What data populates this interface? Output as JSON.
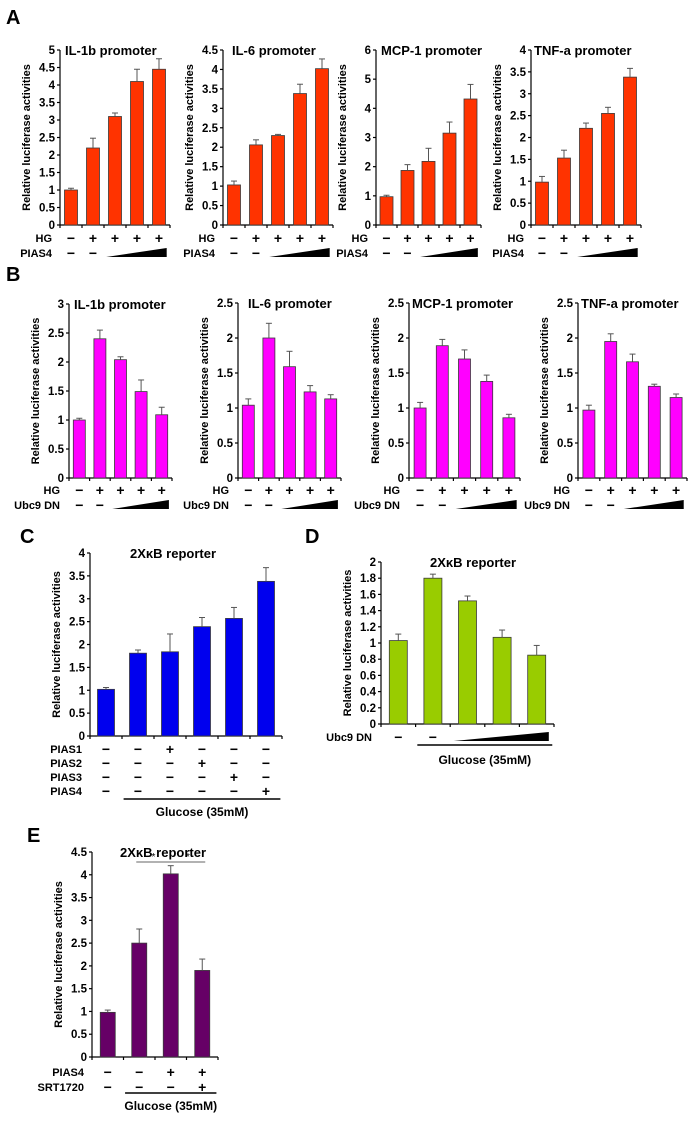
{
  "figure": {
    "colors": {
      "A": "#ff3300",
      "B": "#ff00ff",
      "C": "#0000ee",
      "D": "#99cc00",
      "E": "#660066"
    }
  },
  "chart_data": [
    {
      "panel": "A",
      "id": "A1",
      "type": "bar",
      "title": "IL-1b promoter",
      "ylabel": "Relative luciferase activities",
      "ylim": [
        0,
        5
      ],
      "yticks": [
        "0",
        "0.5",
        "1",
        "1.5",
        "2",
        "2.5",
        "3",
        "3.5",
        "4",
        "4.5",
        "5"
      ],
      "values": [
        1.0,
        2.2,
        3.1,
        4.1,
        4.45
      ],
      "errors": [
        0.05,
        0.28,
        0.1,
        0.35,
        0.3
      ],
      "conditions": [
        {
          "label": "HG",
          "marks": [
            "−",
            "+",
            "+",
            "+",
            "+"
          ]
        },
        {
          "label": "PIAS4",
          "marks": [
            "−",
            "−",
            "ramp",
            "ramp",
            "ramp"
          ]
        }
      ]
    },
    {
      "panel": "A",
      "id": "A2",
      "type": "bar",
      "title": "IL-6 promoter",
      "ylabel": "Relative luciferase activities",
      "ylim": [
        0,
        4.5
      ],
      "yticks": [
        "0",
        "0.5",
        "1",
        "1.5",
        "2",
        "2.5",
        "3",
        "3.5",
        "4",
        "4.5"
      ],
      "values": [
        1.03,
        2.06,
        2.3,
        3.38,
        4.02
      ],
      "errors": [
        0.1,
        0.13,
        0.03,
        0.24,
        0.25
      ],
      "conditions": [
        {
          "label": "HG",
          "marks": [
            "−",
            "+",
            "+",
            "+",
            "+"
          ]
        },
        {
          "label": "PIAS4",
          "marks": [
            "−",
            "−",
            "ramp",
            "ramp",
            "ramp"
          ]
        }
      ]
    },
    {
      "panel": "A",
      "id": "A3",
      "type": "bar",
      "title": "MCP-1 promoter",
      "ylabel": "Relative luciferase activities",
      "ylim": [
        0,
        6
      ],
      "yticks": [
        "0",
        "1",
        "2",
        "3",
        "4",
        "5",
        "6"
      ],
      "values": [
        0.97,
        1.87,
        2.18,
        3.15,
        4.32
      ],
      "errors": [
        0.05,
        0.2,
        0.45,
        0.38,
        0.5
      ],
      "conditions": [
        {
          "label": "HG",
          "marks": [
            "−",
            "+",
            "+",
            "+",
            "+"
          ]
        },
        {
          "label": "PIAS4",
          "marks": [
            "−",
            "−",
            "ramp",
            "ramp",
            "ramp"
          ]
        }
      ]
    },
    {
      "panel": "A",
      "id": "A4",
      "type": "bar",
      "title": "TNF-a promoter",
      "ylabel": "Relative luciferase activities",
      "ylim": [
        0,
        4
      ],
      "yticks": [
        "0",
        "0.5",
        "1",
        "1.5",
        "2",
        "2.5",
        "3",
        "3.5",
        "4"
      ],
      "values": [
        0.98,
        1.53,
        2.21,
        2.55,
        3.38
      ],
      "errors": [
        0.13,
        0.18,
        0.12,
        0.14,
        0.2
      ],
      "conditions": [
        {
          "label": "HG",
          "marks": [
            "−",
            "+",
            "+",
            "+",
            "+"
          ]
        },
        {
          "label": "PIAS4",
          "marks": [
            "−",
            "−",
            "ramp",
            "ramp",
            "ramp"
          ]
        }
      ]
    },
    {
      "panel": "B",
      "id": "B1",
      "type": "bar",
      "title": "IL-1b promoter",
      "ylabel": "Relative luciferase activities",
      "ylim": [
        0,
        3
      ],
      "yticks": [
        "0",
        "0.5",
        "1",
        "1.5",
        "2",
        "2.5",
        "3"
      ],
      "values": [
        1.0,
        2.4,
        2.04,
        1.49,
        1.09
      ],
      "errors": [
        0.03,
        0.15,
        0.05,
        0.2,
        0.13
      ],
      "conditions": [
        {
          "label": "HG",
          "marks": [
            "−",
            "+",
            "+",
            "+",
            "+"
          ]
        },
        {
          "label": "Ubc9 DN",
          "marks": [
            "−",
            "−",
            "ramp",
            "ramp",
            "ramp"
          ]
        }
      ]
    },
    {
      "panel": "B",
      "id": "B2",
      "type": "bar",
      "title": "IL-6 promoter",
      "ylabel": "Relative luciferase activities",
      "ylim": [
        0,
        2.5
      ],
      "yticks": [
        "0",
        "0.5",
        "1",
        "1.5",
        "2",
        "2.5"
      ],
      "values": [
        1.04,
        2.0,
        1.59,
        1.23,
        1.13
      ],
      "errors": [
        0.09,
        0.21,
        0.22,
        0.09,
        0.06
      ],
      "conditions": [
        {
          "label": "HG",
          "marks": [
            "−",
            "+",
            "+",
            "+",
            "+"
          ]
        },
        {
          "label": "Ubc9 DN",
          "marks": [
            "−",
            "−",
            "ramp",
            "ramp",
            "ramp"
          ]
        }
      ]
    },
    {
      "panel": "B",
      "id": "B3",
      "type": "bar",
      "title": "MCP-1 promoter",
      "ylabel": "Relative luciferase activities",
      "ylim": [
        0,
        2.5
      ],
      "yticks": [
        "0",
        "0.5",
        "1",
        "1.5",
        "2",
        "2.5"
      ],
      "values": [
        1.0,
        1.89,
        1.7,
        1.38,
        0.86
      ],
      "errors": [
        0.08,
        0.09,
        0.13,
        0.09,
        0.05
      ],
      "conditions": [
        {
          "label": "HG",
          "marks": [
            "−",
            "+",
            "+",
            "+",
            "+"
          ]
        },
        {
          "label": "Ubc9 DN",
          "marks": [
            "−",
            "−",
            "ramp",
            "ramp",
            "ramp"
          ]
        }
      ]
    },
    {
      "panel": "B",
      "id": "B4",
      "type": "bar",
      "title": "TNF-a promoter",
      "ylabel": "Relative luciferase activities",
      "ylim": [
        0,
        2.5
      ],
      "yticks": [
        "0",
        "0.5",
        "1",
        "1.5",
        "2",
        "2.5"
      ],
      "values": [
        0.97,
        1.95,
        1.66,
        1.31,
        1.15
      ],
      "errors": [
        0.07,
        0.11,
        0.11,
        0.03,
        0.05
      ],
      "conditions": [
        {
          "label": "HG",
          "marks": [
            "−",
            "+",
            "+",
            "+",
            "+"
          ]
        },
        {
          "label": "Ubc9 DN",
          "marks": [
            "−",
            "−",
            "ramp",
            "ramp",
            "ramp"
          ]
        }
      ]
    },
    {
      "panel": "C",
      "id": "C",
      "type": "bar",
      "title": "2XκB reporter",
      "ylabel": "Relative luciferase activities",
      "ylim": [
        0,
        4
      ],
      "yticks": [
        "0",
        "0.5",
        "1",
        "1.5",
        "2",
        "2.5",
        "3",
        "3.5",
        "4"
      ],
      "values": [
        1.02,
        1.81,
        1.84,
        2.39,
        2.57,
        3.38
      ],
      "errors": [
        0.04,
        0.07,
        0.39,
        0.2,
        0.24,
        0.3
      ],
      "conditions": [
        {
          "label": "PIAS1",
          "marks": [
            "−",
            "−",
            "+",
            "−",
            "−",
            "−"
          ]
        },
        {
          "label": "PIAS2",
          "marks": [
            "−",
            "−",
            "−",
            "+",
            "−",
            "−"
          ]
        },
        {
          "label": "PIAS3",
          "marks": [
            "−",
            "−",
            "−",
            "−",
            "+",
            "−"
          ]
        },
        {
          "label": "PIAS4",
          "marks": [
            "−",
            "−",
            "−",
            "−",
            "−",
            "+"
          ]
        }
      ],
      "group_label": "Glucose (35mM)",
      "group_span": [
        1,
        5
      ]
    },
    {
      "panel": "D",
      "id": "D",
      "type": "bar",
      "title": "2XκB reporter",
      "ylabel": "Relative luciferase activities",
      "ylim": [
        0,
        2
      ],
      "yticks": [
        "0",
        "0.2",
        "0.4",
        "0.6",
        "0.8",
        "1",
        "1.2",
        "1.4",
        "1.6",
        "1.8",
        "2"
      ],
      "values": [
        1.03,
        1.8,
        1.52,
        1.07,
        0.85
      ],
      "errors": [
        0.08,
        0.05,
        0.06,
        0.09,
        0.12
      ],
      "conditions": [
        {
          "label": "Ubc9 DN",
          "marks": [
            "−",
            "−",
            "ramp",
            "ramp",
            "ramp"
          ]
        }
      ],
      "group_label": "Glucose (35mM)",
      "group_span": [
        1,
        4
      ]
    },
    {
      "panel": "E",
      "id": "E",
      "type": "bar",
      "title": "2XκB reporter",
      "ylabel": "Relative luciferase activities",
      "ylim": [
        0,
        4.5
      ],
      "yticks": [
        "0",
        "0.5",
        "1",
        "1.5",
        "2",
        "2.5",
        "3",
        "3.5",
        "4",
        "4.5"
      ],
      "values": [
        0.98,
        2.5,
        4.02,
        1.9
      ],
      "errors": [
        0.05,
        0.31,
        0.18,
        0.25
      ],
      "conditions": [
        {
          "label": "PIAS4",
          "marks": [
            "−",
            "−",
            "+",
            "+"
          ]
        },
        {
          "label": "SRT1720",
          "marks": [
            "−",
            "−",
            "−",
            "+"
          ]
        }
      ],
      "group_label": "Glucose (35mM)",
      "group_span": [
        1,
        3
      ],
      "significance": {
        "from": 1,
        "to": 3,
        "marks": [
          "*",
          "*"
        ]
      }
    }
  ]
}
